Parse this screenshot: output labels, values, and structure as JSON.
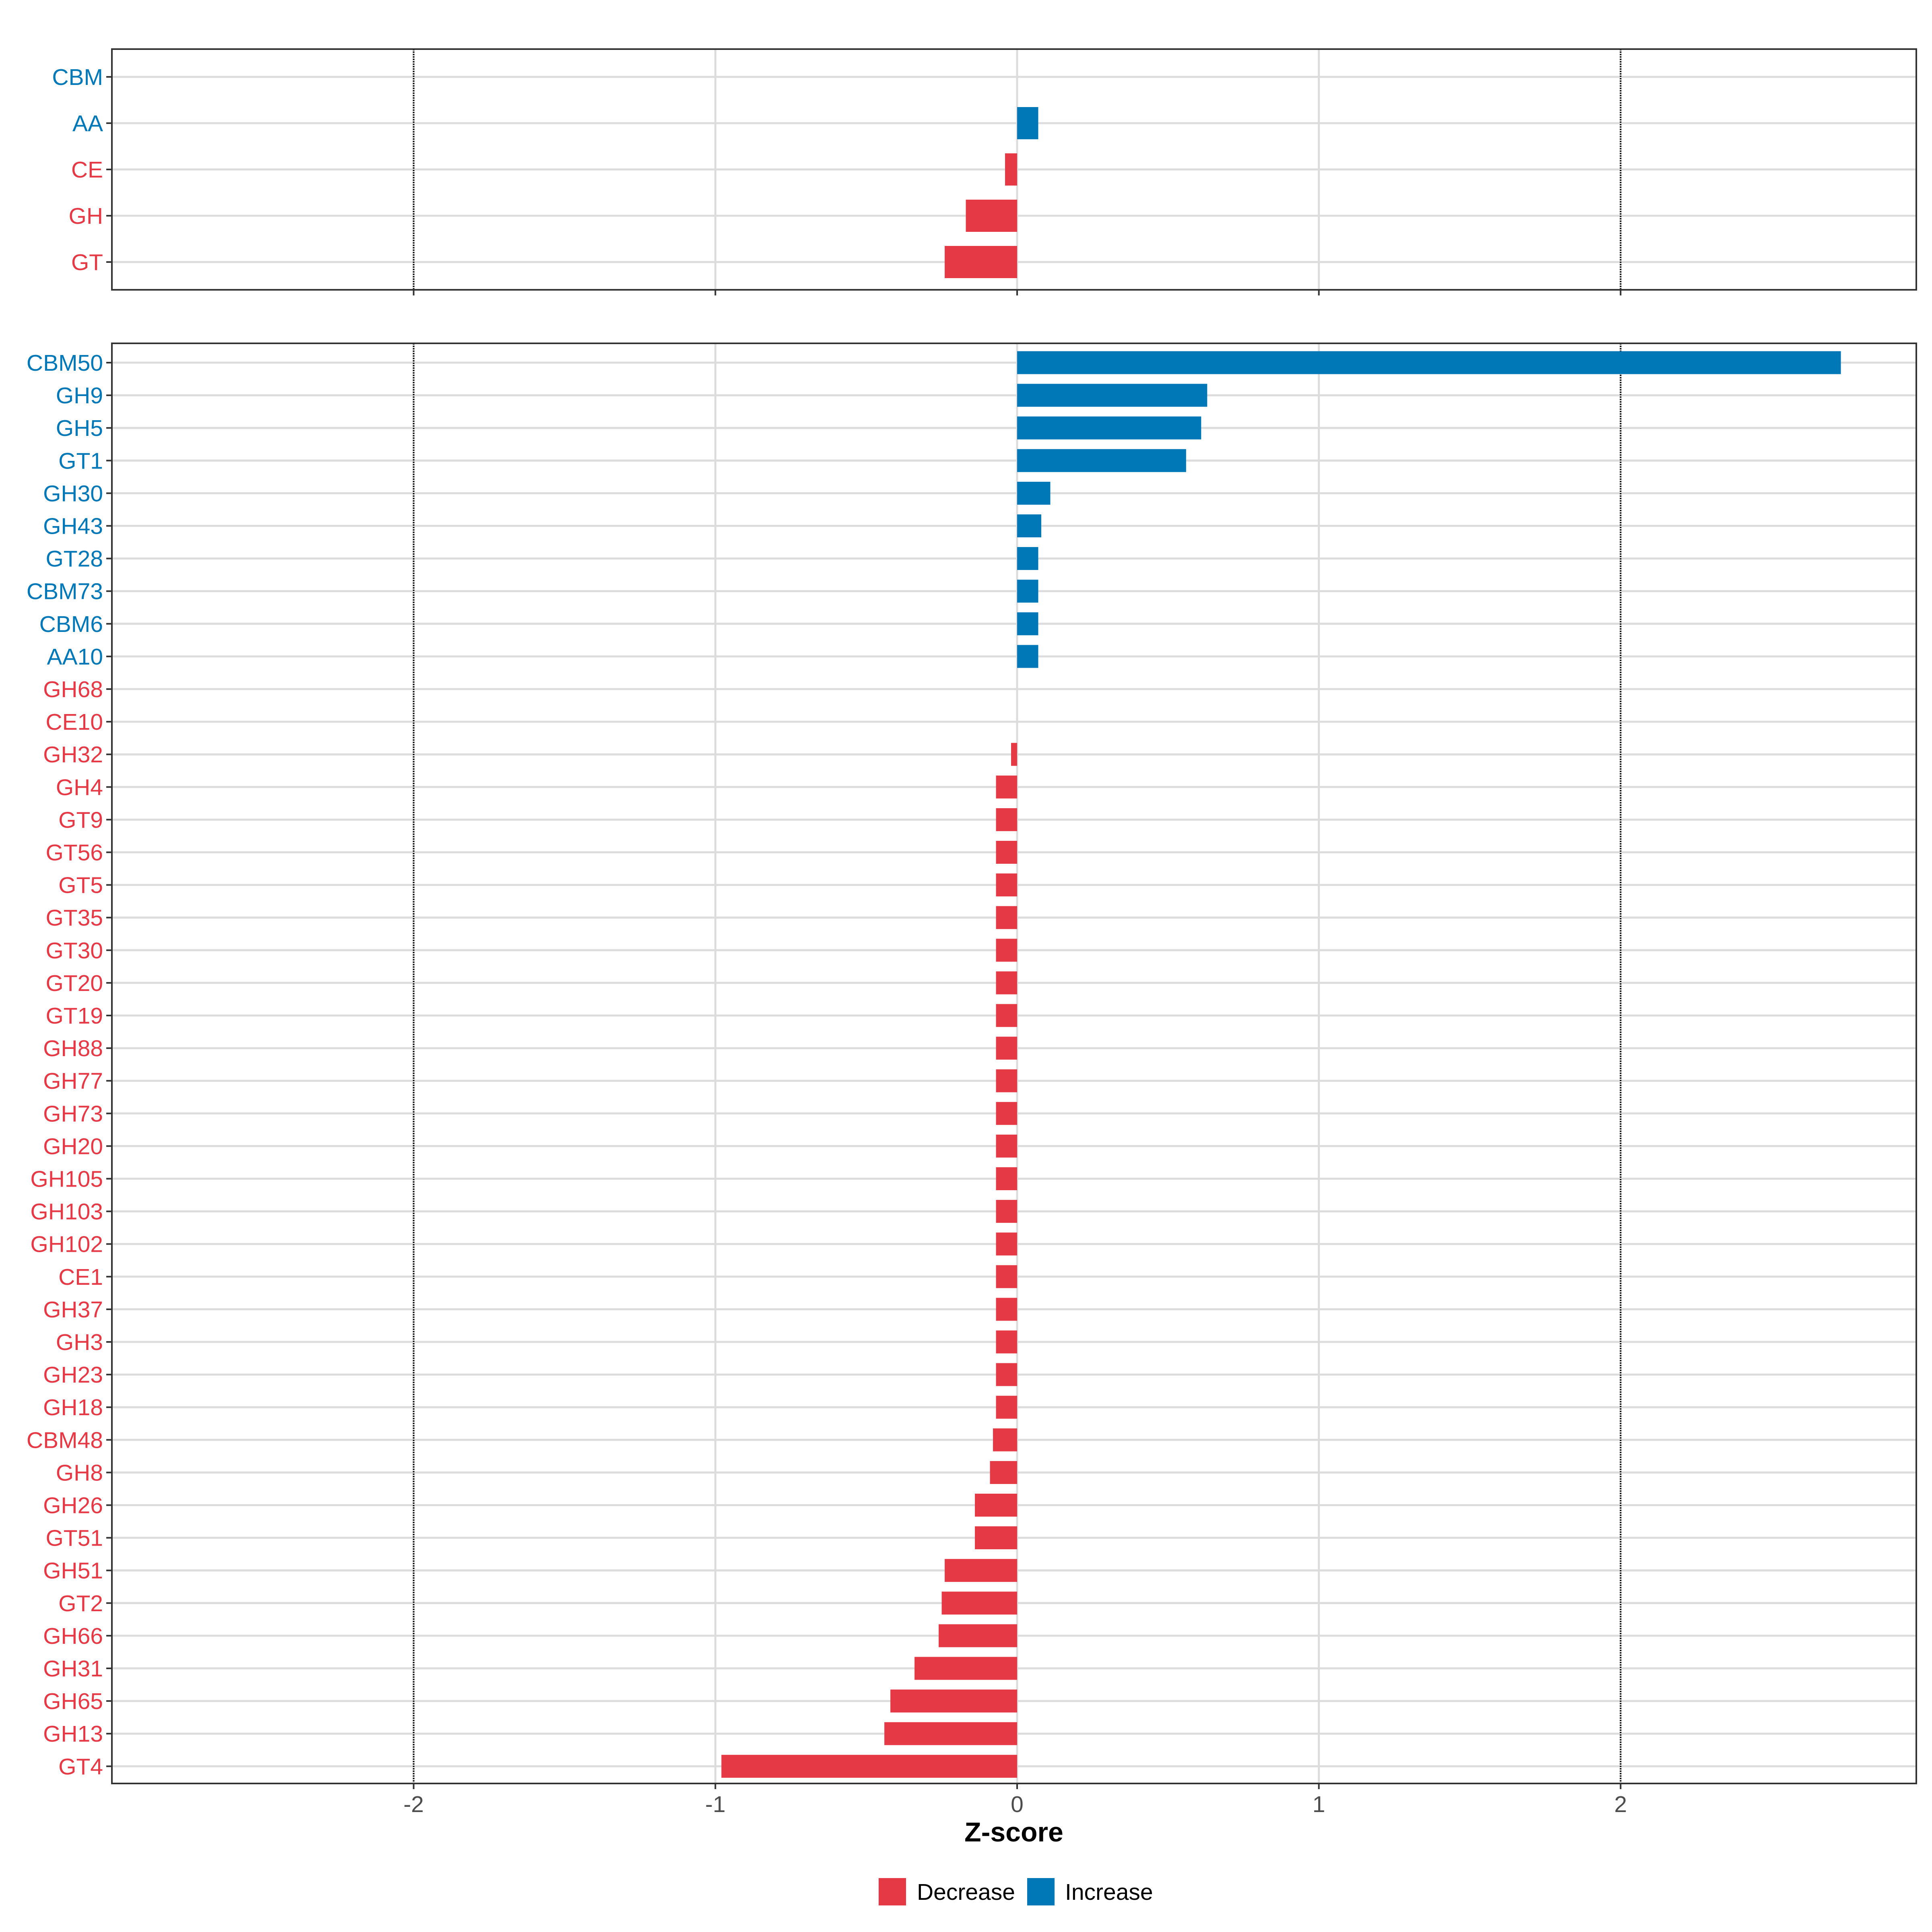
{
  "chart_data": {
    "type": "bar",
    "orientation": "horizontal",
    "xlabel": "Z-score",
    "xlim": [
      -3.0,
      2.98
    ],
    "xticks": [
      -2,
      -1,
      0,
      1,
      2
    ],
    "xtick_labels": [
      "-2",
      "-1",
      "0",
      "1",
      "2"
    ],
    "reference_lines": [
      -2,
      2
    ],
    "grid": true,
    "colors": {
      "Decrease": "#E63946",
      "Increase": "#0077B6"
    },
    "legend": {
      "position": "bottom",
      "items": [
        {
          "label": "Decrease",
          "color": "#E63946"
        },
        {
          "label": "Increase",
          "color": "#0077B6"
        }
      ]
    },
    "panels": [
      {
        "categories": [
          "CBM",
          "AA",
          "CE",
          "GH",
          "GT"
        ],
        "values": [
          0.0,
          0.07,
          -0.04,
          -0.17,
          -0.24
        ],
        "groups": [
          "Increase",
          "Increase",
          "Decrease",
          "Decrease",
          "Decrease"
        ]
      },
      {
        "categories": [
          "CBM50",
          "GH9",
          "GH5",
          "GT1",
          "GH30",
          "GH43",
          "GT28",
          "CBM73",
          "CBM6",
          "AA10",
          "GH68",
          "CE10",
          "GH32",
          "GH4",
          "GT9",
          "GT56",
          "GT5",
          "GT35",
          "GT30",
          "GT20",
          "GT19",
          "GH88",
          "GH77",
          "GH73",
          "GH20",
          "GH105",
          "GH103",
          "GH102",
          "CE1",
          "GH37",
          "GH3",
          "GH23",
          "GH18",
          "CBM48",
          "GH8",
          "GH26",
          "GT51",
          "GH51",
          "GT2",
          "GH66",
          "GH31",
          "GH65",
          "GH13",
          "GT4"
        ],
        "values": [
          2.73,
          0.63,
          0.61,
          0.56,
          0.11,
          0.08,
          0.07,
          0.07,
          0.07,
          0.07,
          0.0,
          0.0,
          -0.02,
          -0.07,
          -0.07,
          -0.07,
          -0.07,
          -0.07,
          -0.07,
          -0.07,
          -0.07,
          -0.07,
          -0.07,
          -0.07,
          -0.07,
          -0.07,
          -0.07,
          -0.07,
          -0.07,
          -0.07,
          -0.07,
          -0.07,
          -0.07,
          -0.08,
          -0.09,
          -0.14,
          -0.14,
          -0.24,
          -0.25,
          -0.26,
          -0.34,
          -0.42,
          -0.44,
          -0.98
        ],
        "groups": [
          "Increase",
          "Increase",
          "Increase",
          "Increase",
          "Increase",
          "Increase",
          "Increase",
          "Increase",
          "Increase",
          "Increase",
          "Decrease",
          "Decrease",
          "Decrease",
          "Decrease",
          "Decrease",
          "Decrease",
          "Decrease",
          "Decrease",
          "Decrease",
          "Decrease",
          "Decrease",
          "Decrease",
          "Decrease",
          "Decrease",
          "Decrease",
          "Decrease",
          "Decrease",
          "Decrease",
          "Decrease",
          "Decrease",
          "Decrease",
          "Decrease",
          "Decrease",
          "Decrease",
          "Decrease",
          "Decrease",
          "Decrease",
          "Decrease",
          "Decrease",
          "Decrease",
          "Decrease",
          "Decrease",
          "Decrease",
          "Decrease"
        ]
      }
    ]
  }
}
